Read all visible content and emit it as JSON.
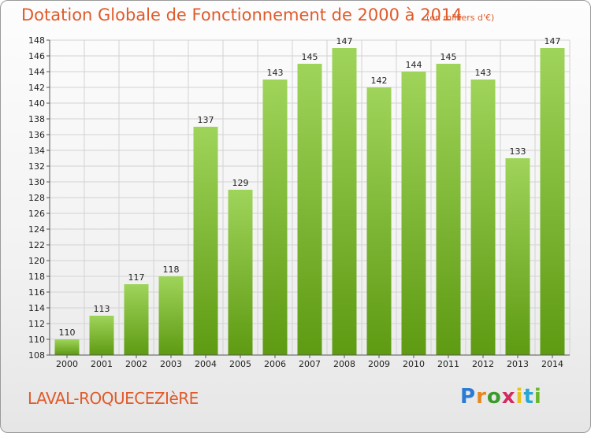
{
  "header": {
    "title": "Dotation Globale de Fonctionnement de 2000 à 2014",
    "unit": "(en milliers d'€)"
  },
  "footer": {
    "commune": "LAVAL-ROQUECEZIèRE",
    "logo": "Proxiti"
  },
  "colors": {
    "bar_top": "#9fd45a",
    "bar_bottom": "#5e9a12",
    "title": "#e05a2a"
  },
  "chart_data": {
    "type": "bar",
    "categories": [
      "2000",
      "2001",
      "2002",
      "2003",
      "2004",
      "2005",
      "2006",
      "2007",
      "2008",
      "2009",
      "2010",
      "2011",
      "2012",
      "2013",
      "2014"
    ],
    "values": [
      110,
      113,
      117,
      118,
      137,
      129,
      143,
      145,
      147,
      142,
      144,
      145,
      143,
      133,
      147
    ],
    "title": "Dotation Globale de Fonctionnement de 2000 à 2014",
    "subtitle": "(en milliers d'€)",
    "xlabel": "",
    "ylabel": "",
    "ylim": [
      108,
      148
    ],
    "yticks": [
      108,
      110,
      112,
      114,
      116,
      118,
      120,
      122,
      124,
      126,
      128,
      130,
      132,
      134,
      136,
      138,
      140,
      142,
      144,
      146,
      148
    ],
    "grid": true
  }
}
